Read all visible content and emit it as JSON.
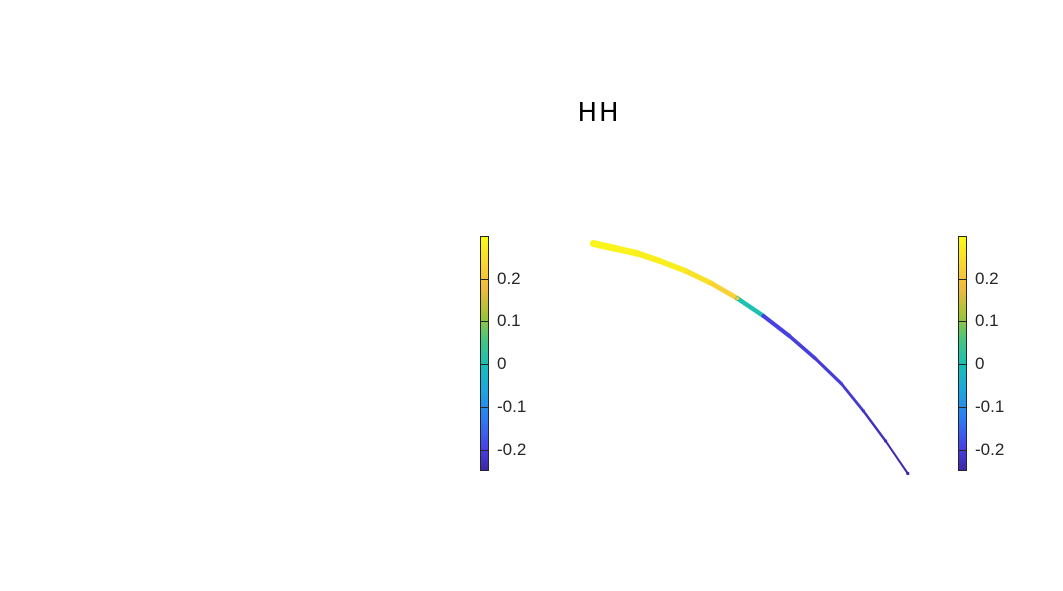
{
  "chart_data": {
    "type": "scatter",
    "title": "HH",
    "xlabel": "",
    "ylabel": "",
    "axes_visible": false,
    "colormap": "parula",
    "color_range": [
      -0.25,
      0.3
    ],
    "colorbars": [
      {
        "ticks": [
          0.2,
          0.1,
          0,
          -0.1,
          -0.2
        ],
        "tick_labels": [
          "0.2",
          "0.1",
          "0",
          "-0.1",
          "-0.2"
        ]
      },
      {
        "ticks": [
          0.2,
          0.1,
          0,
          -0.1,
          -0.2
        ],
        "tick_labels": [
          "0.2",
          "0.1",
          "0",
          "-0.1",
          "-0.2"
        ]
      }
    ],
    "series": [
      {
        "points": [
          {
            "x": -8.6,
            "y": 9.7,
            "value": 0.29
          },
          {
            "x": -8.0,
            "y": 9.5,
            "value": 0.29
          },
          {
            "x": -7.4,
            "y": 9.3,
            "value": 0.28
          },
          {
            "x": -6.8,
            "y": 9.0,
            "value": 0.28
          },
          {
            "x": -6.1,
            "y": 8.6,
            "value": 0.27
          },
          {
            "x": -5.4,
            "y": 8.1,
            "value": 0.24
          },
          {
            "x": -4.7,
            "y": 7.5,
            "value": 0.21
          },
          {
            "x": -4.0,
            "y": 6.8,
            "value": -0.2
          },
          {
            "x": -3.3,
            "y": 6.0,
            "value": -0.2
          },
          {
            "x": -2.6,
            "y": 5.1,
            "value": -0.21
          },
          {
            "x": -1.9,
            "y": 4.1,
            "value": -0.21
          },
          {
            "x": -1.3,
            "y": 3.0,
            "value": -0.22
          },
          {
            "x": -0.7,
            "y": 1.8,
            "value": -0.24
          },
          {
            "x": -0.1,
            "y": 0.5,
            "value": -0.25
          }
        ]
      }
    ],
    "xlim": [
      -9.5,
      0.5
    ],
    "ylim": [
      0,
      10
    ]
  }
}
